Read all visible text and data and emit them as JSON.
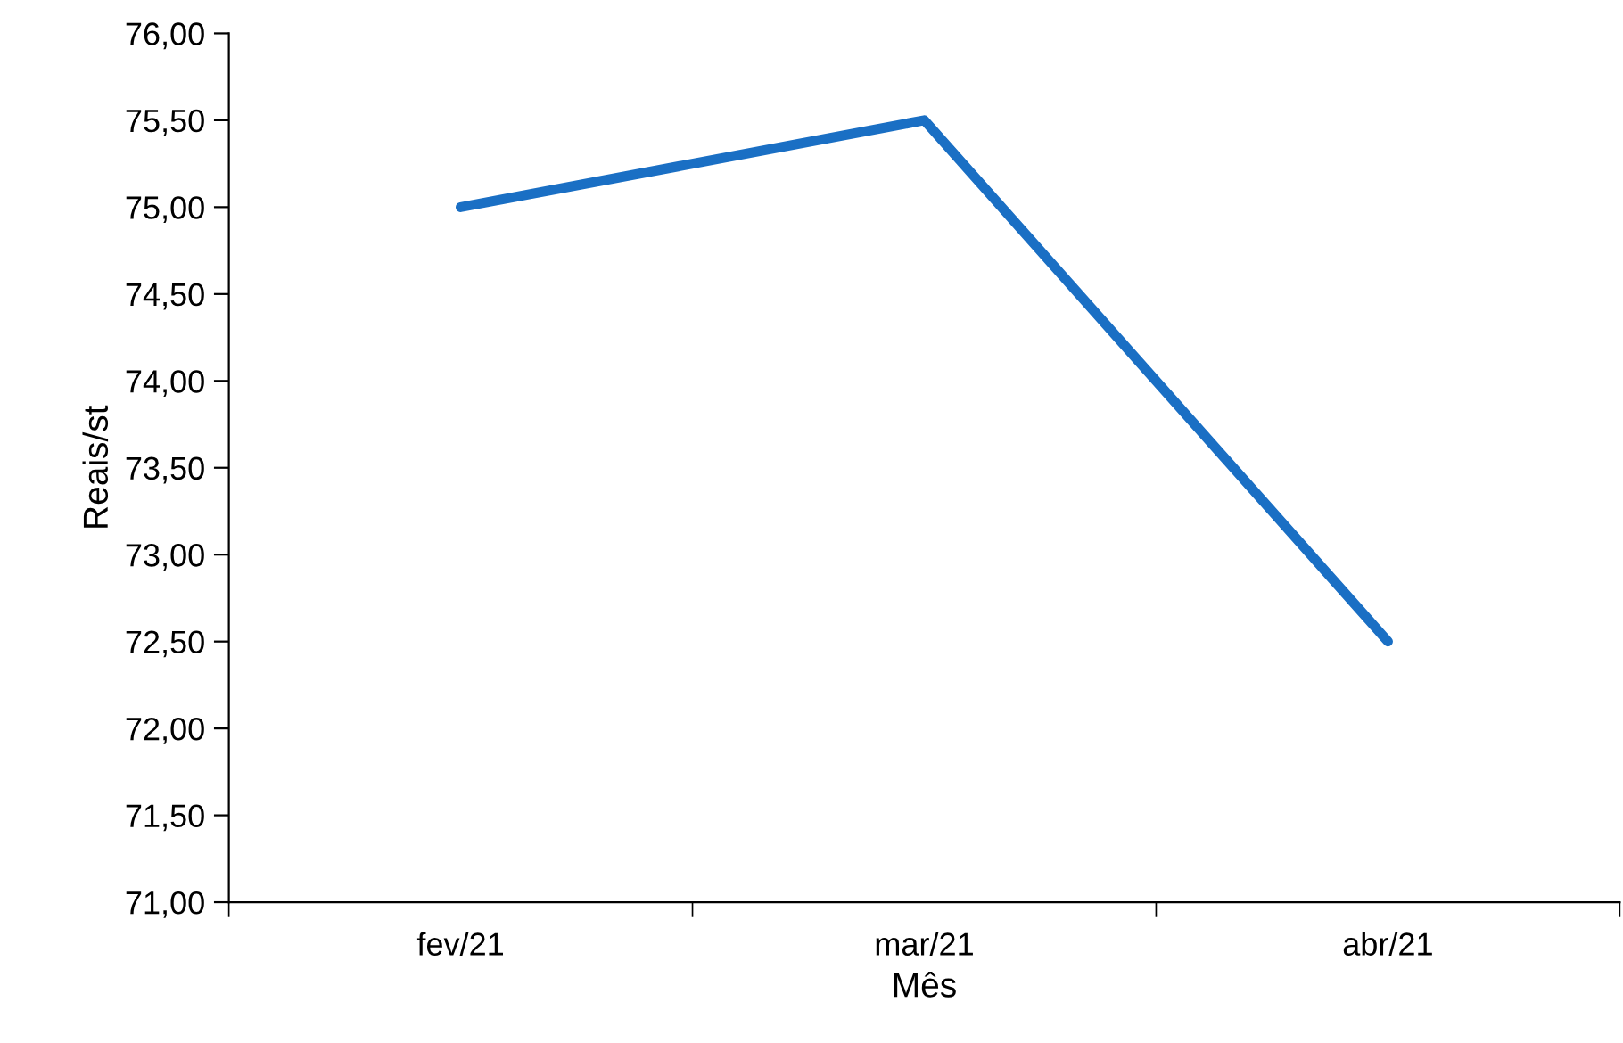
{
  "chart_data": {
    "type": "line",
    "xlabel": "Mês",
    "ylabel": "Reais/st",
    "categories": [
      "fev/21",
      "mar/21",
      "abr/21"
    ],
    "series": [
      {
        "color": "#1a6fc4",
        "values": [
          75.0,
          75.5,
          72.5
        ]
      }
    ],
    "ylim": [
      71,
      76
    ],
    "yticks": [
      {
        "value": 71,
        "label": "71,00"
      },
      {
        "value": 71.5,
        "label": "71,50"
      },
      {
        "value": 72,
        "label": "72,00"
      },
      {
        "value": 72.5,
        "label": "72,50"
      },
      {
        "value": 73,
        "label": "73,00"
      },
      {
        "value": 73.5,
        "label": "73,50"
      },
      {
        "value": 74,
        "label": "74,00"
      },
      {
        "value": 74.5,
        "label": "74,50"
      },
      {
        "value": 75,
        "label": "75,00"
      },
      {
        "value": 75.5,
        "label": "75,50"
      },
      {
        "value": 76,
        "label": "76,00"
      }
    ],
    "marker": "none",
    "line_style": "solid"
  }
}
